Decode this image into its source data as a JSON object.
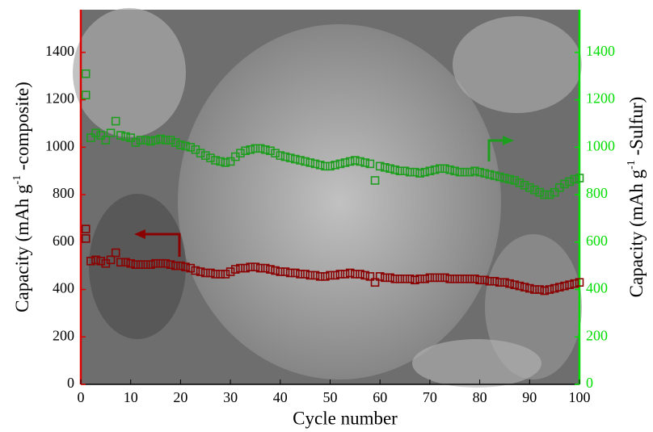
{
  "chart_data": {
    "type": "scatter",
    "xlabel": "Cycle number",
    "ylabel": [
      "Capacity (mAh g",
      "-1",
      " -composite)"
    ],
    "y2label": [
      "Capacity (mAh g",
      "-1",
      " -Sulfur)"
    ],
    "x": [
      1,
      1,
      2,
      3,
      4,
      5,
      6,
      7,
      8,
      9,
      10,
      11,
      12,
      13,
      14,
      15,
      16,
      17,
      18,
      19,
      20,
      21,
      22,
      23,
      24,
      25,
      26,
      27,
      28,
      29,
      30,
      31,
      32,
      33,
      34,
      35,
      36,
      37,
      38,
      39,
      40,
      41,
      42,
      43,
      44,
      45,
      46,
      47,
      48,
      49,
      50,
      51,
      52,
      53,
      54,
      55,
      56,
      57,
      58,
      59,
      60,
      61,
      62,
      63,
      64,
      65,
      66,
      67,
      68,
      69,
      70,
      71,
      72,
      73,
      74,
      75,
      76,
      77,
      78,
      79,
      80,
      81,
      82,
      83,
      84,
      85,
      86,
      87,
      88,
      89,
      90,
      91,
      92,
      93,
      94,
      95,
      96,
      97,
      98,
      99,
      100
    ],
    "series": [
      {
        "color": "#8b0000",
        "axis_color": "#dd0000",
        "values": [
          655,
          615,
          520,
          525,
          520,
          510,
          525,
          555,
          515,
          515,
          510,
          505,
          505,
          505,
          505,
          510,
          510,
          510,
          505,
          500,
          500,
          495,
          490,
          480,
          475,
          470,
          470,
          465,
          465,
          465,
          475,
          485,
          490,
          490,
          495,
          495,
          490,
          490,
          485,
          480,
          475,
          475,
          470,
          470,
          465,
          465,
          460,
          460,
          455,
          455,
          460,
          460,
          465,
          465,
          470,
          465,
          465,
          460,
          455,
          430,
          455,
          450,
          450,
          445,
          445,
          445,
          445,
          440,
          445,
          445,
          450,
          450,
          450,
          450,
          445,
          445,
          445,
          445,
          445,
          445,
          440,
          440,
          435,
          435,
          430,
          430,
          425,
          420,
          415,
          410,
          405,
          400,
          400,
          395,
          400,
          405,
          410,
          415,
          420,
          425,
          430
        ]
      },
      {
        "color": "#1e9e1e",
        "axis_color": "#00dd00",
        "axis": "y2",
        "values": [
          1310,
          1220,
          1040,
          1060,
          1050,
          1030,
          1060,
          1110,
          1050,
          1045,
          1040,
          1020,
          1030,
          1030,
          1025,
          1030,
          1035,
          1030,
          1030,
          1020,
          1010,
          1005,
          1000,
          990,
          975,
          965,
          955,
          945,
          940,
          935,
          940,
          960,
          975,
          985,
          990,
          995,
          995,
          990,
          985,
          975,
          965,
          960,
          955,
          950,
          945,
          940,
          935,
          930,
          925,
          920,
          920,
          925,
          930,
          935,
          940,
          945,
          940,
          935,
          930,
          860,
          920,
          915,
          910,
          905,
          900,
          900,
          895,
          895,
          890,
          895,
          900,
          905,
          910,
          910,
          905,
          900,
          895,
          895,
          895,
          900,
          895,
          890,
          885,
          880,
          875,
          870,
          865,
          860,
          850,
          840,
          830,
          820,
          810,
          800,
          800,
          810,
          830,
          845,
          855,
          865,
          870
        ]
      }
    ],
    "xlim": [
      0,
      100
    ],
    "xticks": [
      0,
      10,
      20,
      30,
      40,
      50,
      60,
      70,
      80,
      90,
      100
    ],
    "ylim": [
      0,
      1580
    ],
    "yticks": [
      0,
      200,
      400,
      600,
      800,
      1000,
      1200,
      1400
    ],
    "y2lim": [
      0,
      1580
    ],
    "y2ticks": [
      0,
      200,
      400,
      600,
      800,
      1000,
      1200,
      1400
    ]
  }
}
